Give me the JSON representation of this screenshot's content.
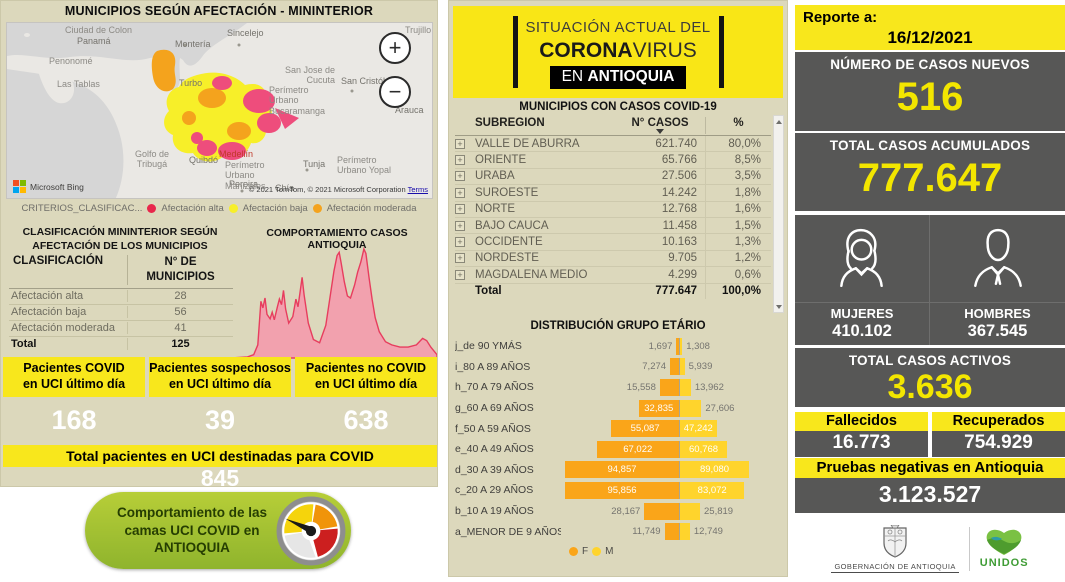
{
  "left_panel": {
    "title": "MUNICIPIOS SEGÚN AFECTACIÓN - MININTERIOR",
    "map": {
      "zoom_in": "+",
      "zoom_out": "−",
      "bing_label": "Microsoft Bing",
      "attribution": "© 2021 TomTom, © 2021 Microsoft Corporation",
      "terms_link": "Terms",
      "labels": [
        "Ciudad de Colon",
        "Panamá",
        "Penonomé",
        "Las Tablas",
        "Montería",
        "Sincelejo",
        "Trujillo",
        "Turbo",
        "San Jose de\nCucuta",
        "San Cristóbal",
        "Perímetro\nUrbano\nBucaramanga",
        "Arauca",
        "Golfo de\nTribugá",
        "Quibdó",
        "Tunja",
        "Perímetro\nUrbano Yopal",
        "Pereira",
        "Chía",
        "Perímetro\nUrbano\nManizales",
        "Medellín"
      ]
    },
    "legend": {
      "prefix": "CRITERIOS_CLASIFICAC...",
      "items": [
        {
          "label": "Afectación alta",
          "color": "#e8274b"
        },
        {
          "label": "Afectación baja",
          "color": "#f7ef29"
        },
        {
          "label": "Afectación moderada",
          "color": "#f4a31d"
        }
      ]
    },
    "classification": {
      "heading": "CLASIFICACIÓN MININTERIOR SEGÚN\nAFECTACIÓN DE LOS MUNICIPIOS",
      "col_classification": "CLASIFICACIÓN",
      "col_municipios": "N° DE\nMUNICIPIOS",
      "rows": [
        {
          "label": "Afectación alta",
          "value": "28"
        },
        {
          "label": "Afectación baja",
          "value": "56"
        },
        {
          "label": "Afectación moderada",
          "value": "41"
        }
      ],
      "total_label": "Total",
      "total_value": "125"
    },
    "behavior": {
      "title": "COMPORTAMIENTO CASOS ANTIOQUIA"
    },
    "uci_boxes": [
      {
        "label": "Pacientes COVID\nen UCI último día",
        "value": "168"
      },
      {
        "label": "Pacientes sospechosos\nen UCI último día",
        "value": "39"
      },
      {
        "label": "Pacientes no COVID\nen UCI último día",
        "value": "638"
      }
    ],
    "uci_total": {
      "label": "Total pacientes en UCI destinadas para COVID",
      "value": "845"
    },
    "uci_button": {
      "label": "Comportamiento de las\ncamas UCI COVID en\nANTIOQUIA"
    }
  },
  "center_panel": {
    "header": {
      "line1": "SITUACIÓN ACTUAL DEL",
      "corona": "CORONA",
      "virus": "VIRUS",
      "en": "EN ",
      "antioquia": "ANTIOQUIA"
    },
    "table": {
      "title": "MUNICIPIOS CON CASOS COVID-19",
      "col_subregion": "SUBREGION",
      "col_casos": "N° CASOS",
      "col_pct": "%",
      "expand_icon": "+",
      "rows": [
        {
          "name": "VALLE DE ABURRÁ",
          "cases": "621.740",
          "pct": "80,0%"
        },
        {
          "name": "ORIENTE",
          "cases": "65.766",
          "pct": "8,5%"
        },
        {
          "name": "URABÁ",
          "cases": "27.506",
          "pct": "3,5%"
        },
        {
          "name": "SUROESTE",
          "cases": "14.242",
          "pct": "1,8%"
        },
        {
          "name": "NORTE",
          "cases": "12.768",
          "pct": "1,6%"
        },
        {
          "name": "BAJO CAUCA",
          "cases": "11.458",
          "pct": "1,5%"
        },
        {
          "name": "OCCIDENTE",
          "cases": "10.163",
          "pct": "1,3%"
        },
        {
          "name": "NORDESTE",
          "cases": "9.705",
          "pct": "1,2%"
        },
        {
          "name": "MAGDALENA MEDIO",
          "cases": "4.299",
          "pct": "0,6%"
        }
      ],
      "total": {
        "name": "Total",
        "cases": "777.647",
        "pct": "100,0%"
      }
    },
    "age_title": "DISTRIBUCIÓN GRUPO ETÁRIO",
    "age_legend": {
      "f": "F",
      "m": "M"
    }
  },
  "right_panel": {
    "report_label": "Reporte a:",
    "report_date": "16/12/2021",
    "new_cases": {
      "label": "NÚMERO DE CASOS NUEVOS",
      "value": "516"
    },
    "total_cases": {
      "label": "TOTAL CASOS ACUMULADOS",
      "value": "777.647"
    },
    "gender": {
      "women_label": "MUJERES",
      "women_value": "410.102",
      "men_label": "HOMBRES",
      "men_value": "367.545"
    },
    "active": {
      "label": "TOTAL CASOS ACTIVOS",
      "value": "3.636"
    },
    "deaths": {
      "label": "Fallecidos",
      "value": "16.773"
    },
    "recovered": {
      "label": "Recuperados",
      "value": "754.929"
    },
    "negative": {
      "label": "Pruebas negativas en Antioquia",
      "value": "3.123.527"
    },
    "logos": {
      "gobernacion": "GOBERNACIÓN DE ANTIOQUIA",
      "unidos": "UNIDOS"
    }
  },
  "colors": {
    "panel_beige": "#dcd8bc",
    "yellow": "#f8e71c",
    "dark_gray": "#575756",
    "kpi_yellow": "#f3e600",
    "area_line": "#e73d5e",
    "area_fill": "#f2a1ae",
    "bar_f_orange": "#faa519",
    "bar_m_yellow": "#ffd42c",
    "button_green": "#9ebc31"
  },
  "chart_data": [
    {
      "type": "area",
      "title": "COMPORTAMIENTO CASOS ANTIOQUIA",
      "note": "ejes sin etiquetas numéricas; curva epidémica normalizada estimada de la imagen (x=tiempo, y=casos relativos 0-1)",
      "points_normalized": [
        [
          0,
          0
        ],
        [
          0.08,
          0.01
        ],
        [
          0.11,
          0.03
        ],
        [
          0.13,
          0.12
        ],
        [
          0.145,
          0.52
        ],
        [
          0.155,
          0.46
        ],
        [
          0.165,
          0.55
        ],
        [
          0.175,
          0.4
        ],
        [
          0.19,
          0.36
        ],
        [
          0.2,
          0.42
        ],
        [
          0.21,
          0.35
        ],
        [
          0.225,
          0.47
        ],
        [
          0.235,
          0.54
        ],
        [
          0.245,
          0.49
        ],
        [
          0.255,
          0.62
        ],
        [
          0.265,
          0.45
        ],
        [
          0.28,
          0.32
        ],
        [
          0.3,
          0.38
        ],
        [
          0.315,
          0.54
        ],
        [
          0.325,
          0.47
        ],
        [
          0.335,
          0.6
        ],
        [
          0.345,
          0.74
        ],
        [
          0.355,
          0.58
        ],
        [
          0.375,
          0.32
        ],
        [
          0.4,
          0.17
        ],
        [
          0.43,
          0.14
        ],
        [
          0.46,
          0.3
        ],
        [
          0.48,
          0.55
        ],
        [
          0.5,
          0.8
        ],
        [
          0.515,
          0.94
        ],
        [
          0.525,
          0.97
        ],
        [
          0.535,
          0.87
        ],
        [
          0.55,
          0.7
        ],
        [
          0.565,
          0.57
        ],
        [
          0.58,
          0.55
        ],
        [
          0.6,
          0.67
        ],
        [
          0.615,
          0.79
        ],
        [
          0.63,
          0.88
        ],
        [
          0.645,
          1.0
        ],
        [
          0.655,
          0.96
        ],
        [
          0.67,
          0.74
        ],
        [
          0.685,
          0.54
        ],
        [
          0.7,
          0.37
        ],
        [
          0.72,
          0.24
        ],
        [
          0.75,
          0.15
        ],
        [
          0.78,
          0.12
        ],
        [
          0.82,
          0.1
        ],
        [
          0.86,
          0.1
        ],
        [
          0.9,
          0.12
        ],
        [
          0.93,
          0.18
        ],
        [
          0.95,
          0.16
        ],
        [
          0.97,
          0.1
        ],
        [
          1,
          0.03
        ]
      ]
    },
    {
      "type": "bar",
      "subtype": "tornado",
      "title": "DISTRIBUCIÓN GRUPO ETÁRIO",
      "categories": [
        "j_de 90 YMÁS",
        "i_80 A 89 AÑOS",
        "h_70 A 79 AÑOS",
        "g_60 A 69 AÑOS",
        "f_50 A 59 AÑOS",
        "e_40 A 49 AÑOS",
        "d_30 A 39 AÑOS",
        "c_20 A 29 AÑOS",
        "b_10 A 19 AÑOS",
        "a_MENOR DE 9 AÑOS"
      ],
      "series": [
        {
          "name": "F",
          "color": "#faa519",
          "values": [
            1697,
            7274,
            15558,
            32835,
            55087,
            67022,
            94857,
            95856,
            28167,
            11749
          ],
          "labels": [
            "1,697",
            "7,274",
            "15,558",
            "32,835",
            "55,087",
            "67,022",
            "94,857",
            "95,856",
            "28,167",
            "11,749"
          ]
        },
        {
          "name": "M",
          "color": "#ffd42c",
          "values": [
            1308,
            5939,
            13962,
            27606,
            47242,
            60768,
            89080,
            83072,
            25819,
            12749
          ],
          "labels": [
            "1,308",
            "5,939",
            "13,962",
            "27,606",
            "47,242",
            "60,768",
            "89,080",
            "83,072",
            "25,819",
            "12,749"
          ]
        }
      ],
      "f_axis_max": 95856,
      "m_axis_max": 129000,
      "inside_label_threshold": 30000,
      "legend_position": "bottom"
    }
  ]
}
